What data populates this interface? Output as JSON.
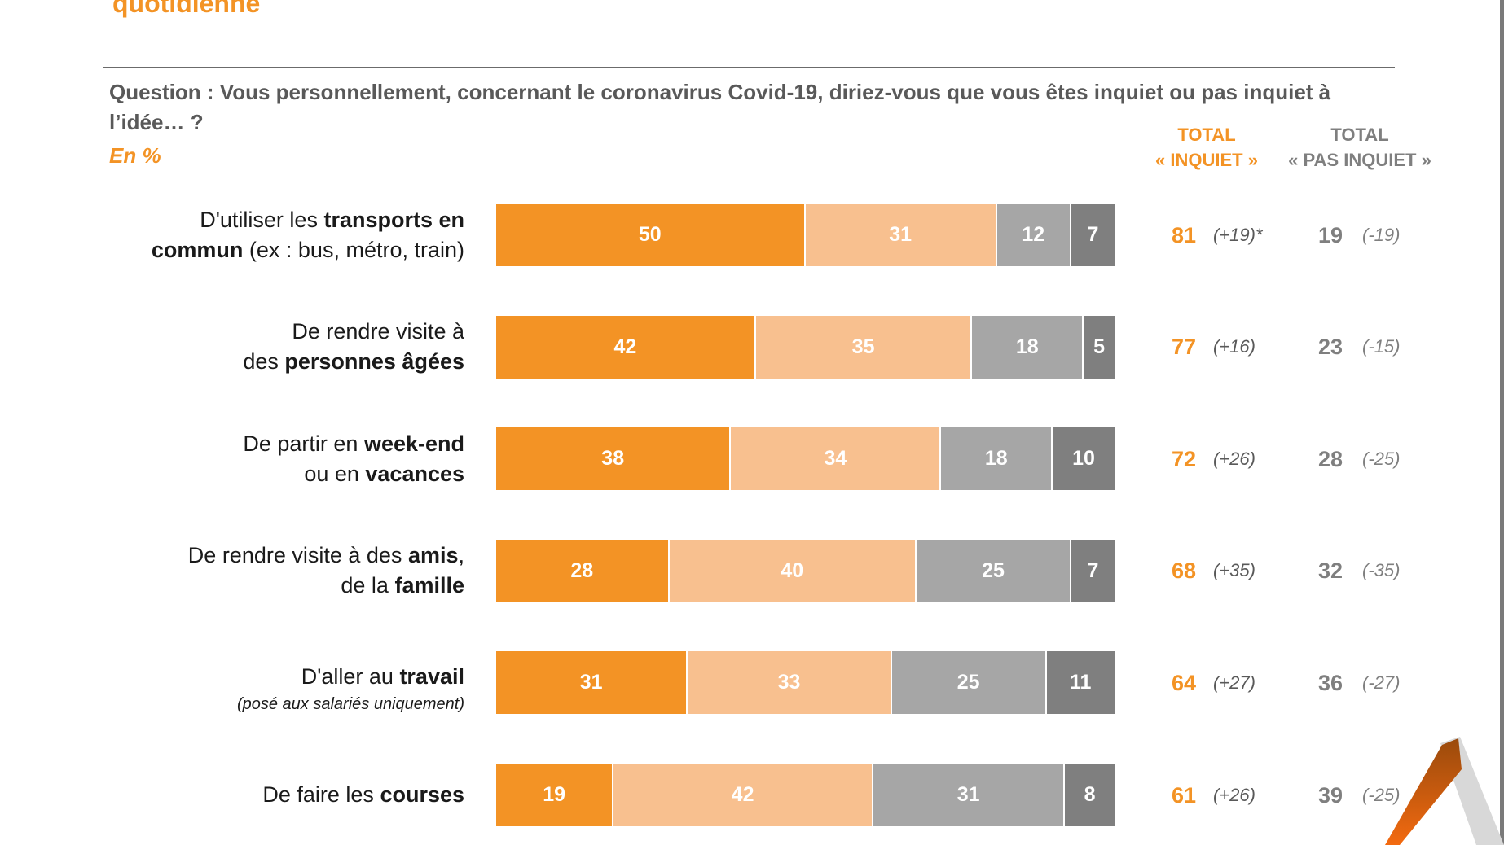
{
  "header": {
    "title_fragment": "quotidienne"
  },
  "question": "Question : Vous personnellement, concernant le coronavirus Covid-19, diriez-vous que vous êtes inquiet ou pas inquiet à l’idée… ?",
  "unit": "En %",
  "columns": {
    "inquiet": {
      "line1": "TOTAL",
      "line2": "« INQUIET »"
    },
    "pas_inquiet": {
      "line1": "TOTAL",
      "line2": "« PAS INQUIET »"
    }
  },
  "rows": [
    {
      "label_parts": [
        {
          "t": "D'utiliser les ",
          "b": false
        },
        {
          "t": "transports en",
          "b": true
        },
        {
          "br": true
        },
        {
          "t": "commun",
          "b": true
        },
        {
          "t": " (ex : bus, métro, train)",
          "b": false
        }
      ],
      "note": "",
      "total_inquiet": "81",
      "delta_inquiet": "(+19)*",
      "total_pas_inquiet": "19",
      "delta_pas_inquiet": "(-19)"
    },
    {
      "label_parts": [
        {
          "t": "De rendre visite à",
          "b": false
        },
        {
          "br": true
        },
        {
          "t": "des ",
          "b": false
        },
        {
          "t": "personnes âgées",
          "b": true
        }
      ],
      "note": "",
      "total_inquiet": "77",
      "delta_inquiet": "(+16)",
      "total_pas_inquiet": "23",
      "delta_pas_inquiet": "(-15)"
    },
    {
      "label_parts": [
        {
          "t": "De partir en ",
          "b": false
        },
        {
          "t": "week-end",
          "b": true
        },
        {
          "br": true
        },
        {
          "t": "ou en ",
          "b": false
        },
        {
          "t": "vacances",
          "b": true
        }
      ],
      "note": "",
      "total_inquiet": "72",
      "delta_inquiet": "(+26)",
      "total_pas_inquiet": "28",
      "delta_pas_inquiet": "(-25)"
    },
    {
      "label_parts": [
        {
          "t": "De rendre visite à des ",
          "b": false
        },
        {
          "t": "amis",
          "b": true
        },
        {
          "t": ",",
          "b": false
        },
        {
          "br": true
        },
        {
          "t": "de la ",
          "b": false
        },
        {
          "t": "famille",
          "b": true
        }
      ],
      "note": "",
      "total_inquiet": "68",
      "delta_inquiet": "(+35)",
      "total_pas_inquiet": "32",
      "delta_pas_inquiet": "(-35)"
    },
    {
      "label_parts": [
        {
          "t": "D'aller au ",
          "b": false
        },
        {
          "t": "travail",
          "b": true
        }
      ],
      "note": "(posé aux salariés uniquement)",
      "total_inquiet": "64",
      "delta_inquiet": "(+27)",
      "total_pas_inquiet": "36",
      "delta_pas_inquiet": "(-27)"
    },
    {
      "label_parts": [
        {
          "t": "De faire les ",
          "b": false
        },
        {
          "t": "courses",
          "b": true
        }
      ],
      "note": "",
      "total_inquiet": "61",
      "delta_inquiet": "(+26)",
      "total_pas_inquiet": "39",
      "delta_pas_inquiet": "(-25)"
    }
  ],
  "chart_data": {
    "type": "bar",
    "orientation": "horizontal",
    "stacked": true,
    "title": "Question : Vous personnellement, concernant le coronavirus Covid-19, diriez-vous que vous êtes inquiet ou pas inquiet à l’idée… ?",
    "unit": "En %",
    "categories": [
      "D'utiliser les transports en commun (ex : bus, métro, train)",
      "De rendre visite à des personnes âgées",
      "De partir en week-end ou en vacances",
      "De rendre visite à des amis, de la famille",
      "D'aller au travail (posé aux salariés uniquement)",
      "De faire les courses"
    ],
    "series": [
      {
        "name": "segment-1",
        "color": "#f39325",
        "values": [
          50,
          42,
          38,
          28,
          31,
          19
        ]
      },
      {
        "name": "segment-2",
        "color": "#f8c08f",
        "values": [
          31,
          35,
          34,
          40,
          33,
          42
        ]
      },
      {
        "name": "segment-3",
        "color": "#a6a6a6",
        "values": [
          12,
          18,
          18,
          25,
          25,
          31
        ]
      },
      {
        "name": "segment-4",
        "color": "#7f7f7f",
        "values": [
          7,
          5,
          10,
          7,
          11,
          8
        ]
      }
    ],
    "xlim": [
      0,
      100
    ],
    "legend": "none"
  }
}
